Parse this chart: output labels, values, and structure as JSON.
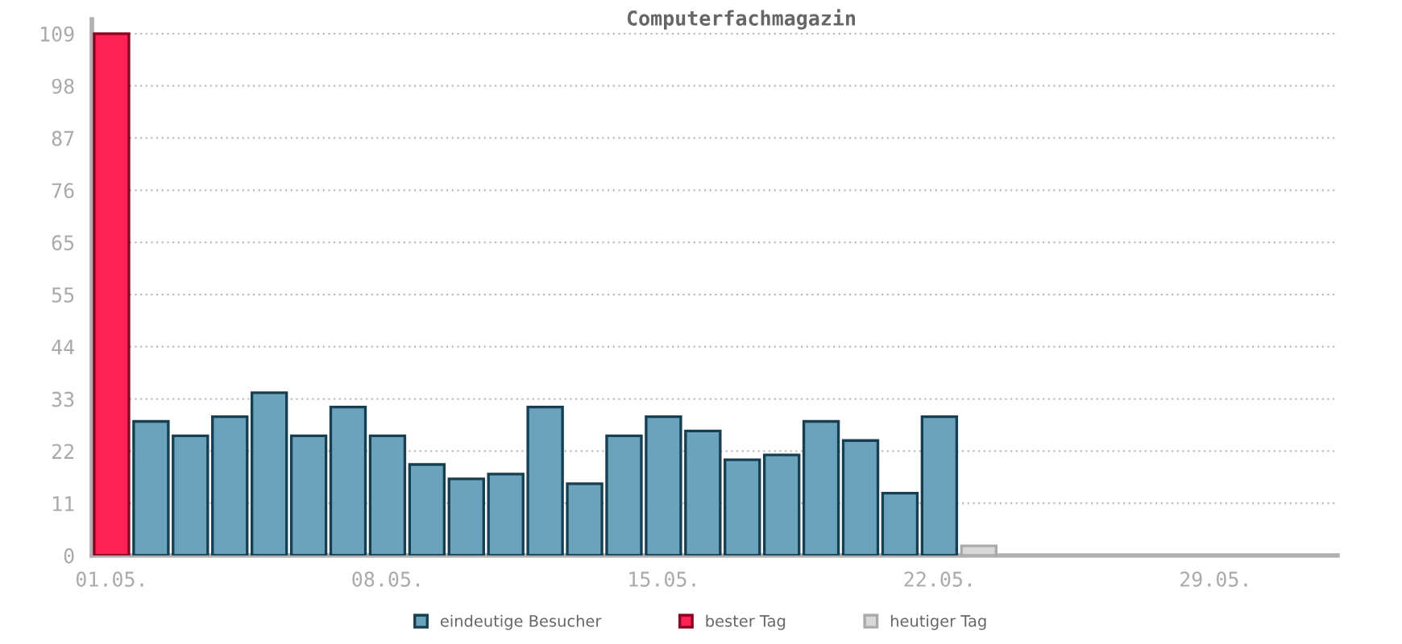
{
  "chart_data": {
    "type": "bar",
    "title": "Computerfachmagazin",
    "categories": [
      "01.05.",
      null,
      null,
      null,
      null,
      null,
      null,
      "08.05.",
      null,
      null,
      null,
      null,
      null,
      null,
      "15.05.",
      null,
      null,
      null,
      null,
      null,
      null,
      "22.05.",
      null,
      null,
      null,
      null,
      null,
      null,
      "29.05.",
      null,
      null
    ],
    "series": [
      {
        "name": "eindeutige Besucher",
        "color": "#6aa3bb",
        "values": [
          null,
          28,
          25,
          29,
          34,
          25,
          31,
          25,
          19,
          16,
          17,
          31,
          15,
          25,
          29,
          26,
          20,
          21,
          28,
          24,
          13,
          29,
          null,
          null,
          null,
          null,
          null,
          null,
          null,
          null,
          null
        ]
      },
      {
        "name": "bester Tag",
        "color": "#ff2255",
        "values": [
          109,
          null,
          null,
          null,
          null,
          null,
          null,
          null,
          null,
          null,
          null,
          null,
          null,
          null,
          null,
          null,
          null,
          null,
          null,
          null,
          null,
          null,
          null,
          null,
          null,
          null,
          null,
          null,
          null,
          null,
          null
        ]
      },
      {
        "name": "heutiger Tag",
        "color": "#d8d8d8",
        "values": [
          null,
          null,
          null,
          null,
          null,
          null,
          null,
          null,
          null,
          null,
          null,
          null,
          null,
          null,
          null,
          null,
          null,
          null,
          null,
          null,
          null,
          null,
          2,
          null,
          null,
          null,
          null,
          null,
          null,
          null,
          null
        ]
      }
    ],
    "ylim": [
      0,
      112
    ],
    "yticks": [
      0,
      {
        "value": 10.9,
        "label": "11"
      },
      {
        "value": 21.8,
        "label": "22"
      },
      {
        "value": 32.7,
        "label": "33"
      },
      {
        "value": 43.6,
        "label": "44"
      },
      {
        "value": 54.5,
        "label": "55"
      },
      {
        "value": 65.4,
        "label": "65"
      },
      {
        "value": 76.3,
        "label": "76"
      },
      {
        "value": 87.2,
        "label": "87"
      },
      {
        "value": 98.1,
        "label": "98"
      },
      {
        "value": 109,
        "label": "109"
      }
    ],
    "grid": "y",
    "legend": "bottom"
  }
}
